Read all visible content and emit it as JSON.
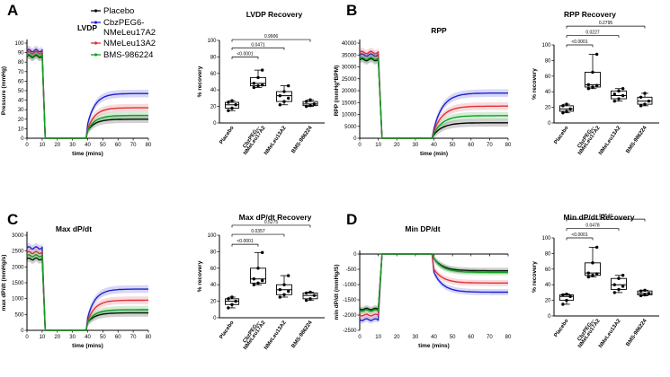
{
  "legend": [
    {
      "name": "Placebo",
      "color": "#000000"
    },
    {
      "name": "CbzPEG6-",
      "name2": "NMeLeu17A2",
      "color": "#2020d0"
    },
    {
      "name": "NMeLeu13A2",
      "color": "#e0303a"
    },
    {
      "name": "BMS-986224",
      "color": "#10a020"
    }
  ],
  "chart_data": [
    {
      "type": "line",
      "panel_label": "A",
      "title": "LVDP",
      "xlabel": "time (mins)",
      "ylabel": "Pressure (mmHg)",
      "xlim": [
        0,
        80
      ],
      "ylim": [
        0,
        100
      ],
      "xticks": [
        0,
        10,
        20,
        30,
        40,
        50,
        60,
        70,
        80
      ],
      "yticks": [
        0,
        10,
        20,
        30,
        40,
        50,
        60,
        70,
        80,
        90,
        100
      ],
      "series": [
        {
          "name": "Placebo",
          "color": "#000000",
          "pre": 86,
          "post_start": 8,
          "post_end": 20
        },
        {
          "name": "CbzPEG6-NMeLeu17A2",
          "color": "#2020d0",
          "pre": 92,
          "post_start": 15,
          "post_end": 47
        },
        {
          "name": "NMeLeu13A2",
          "color": "#e0303a",
          "pre": 90,
          "post_start": 10,
          "post_end": 32
        },
        {
          "name": "BMS-986224",
          "color": "#10a020",
          "pre": 87,
          "post_start": 8,
          "post_end": 24
        }
      ]
    },
    {
      "type": "box",
      "panel_label": "",
      "title": "LVDP Recovery",
      "ylabel": "% recovery",
      "ylim": [
        0,
        100
      ],
      "yticks": [
        0,
        20,
        40,
        60,
        80,
        100
      ],
      "categories": [
        "Placebo",
        "CbzPEG6-NMeLeu17A2",
        "NMeLeu13A2",
        "BMS-986224"
      ],
      "tick_labels": [
        "Placebo",
        "CbzPEG₆-",
        "NMeLeu13A2",
        "BMS-986224"
      ],
      "tick_labels2": [
        "",
        "NMeLeu17A2",
        "",
        ""
      ],
      "boxes": [
        {
          "min": 15,
          "q1": 18,
          "median": 22,
          "q3": 25,
          "max": 27,
          "points": [
            15,
            18,
            22,
            25,
            27
          ]
        },
        {
          "min": 43,
          "q1": 45,
          "median": 48,
          "q3": 55,
          "max": 64,
          "points": [
            43,
            45,
            46,
            48,
            55,
            64
          ]
        },
        {
          "min": 22,
          "q1": 26,
          "median": 33,
          "q3": 38,
          "max": 45,
          "points": [
            22,
            26,
            30,
            33,
            38,
            45
          ]
        },
        {
          "min": 20,
          "q1": 21,
          "median": 23,
          "q3": 26,
          "max": 28,
          "points": [
            20,
            21,
            23,
            26,
            28
          ]
        }
      ],
      "comparisons": [
        {
          "from": 0,
          "to": 1,
          "p": "<0.0001",
          "y": 80
        },
        {
          "from": 0,
          "to": 2,
          "p": "0.0471",
          "y": 91
        },
        {
          "from": 0,
          "to": 3,
          "p": "0.9906",
          "y": 101
        }
      ]
    },
    {
      "type": "line",
      "panel_label": "B",
      "title": "RPP",
      "xlabel": "time (min)",
      "ylabel": "RPP (mmHg*BPM)",
      "xlim": [
        0,
        80
      ],
      "ylim": [
        0,
        40000
      ],
      "xticks": [
        0,
        10,
        20,
        30,
        40,
        50,
        60,
        70,
        80
      ],
      "yticks": [
        0,
        5000,
        10000,
        15000,
        20000,
        25000,
        30000,
        35000,
        40000
      ],
      "series": [
        {
          "name": "Placebo",
          "color": "#000000",
          "pre": 33000,
          "post_start": 1500,
          "post_end": 6500
        },
        {
          "name": "CbzPEG6-NMeLeu17A2",
          "color": "#2020d0",
          "pre": 35000,
          "post_start": 4000,
          "post_end": 19000
        },
        {
          "name": "NMeLeu13A2",
          "color": "#e0303a",
          "pre": 36000,
          "post_start": 3000,
          "post_end": 13500
        },
        {
          "name": "BMS-986224",
          "color": "#10a020",
          "pre": 33500,
          "post_start": 2000,
          "post_end": 9500
        }
      ]
    },
    {
      "type": "box",
      "panel_label": "",
      "title": "RPP Recovery",
      "ylabel": "% recovery",
      "ylim": [
        0,
        100
      ],
      "yticks": [
        0,
        20,
        40,
        60,
        80,
        100
      ],
      "categories": [
        "Placebo",
        "CbzPEG6-NMeLeu17A2",
        "NMeLeu13A2",
        "BMS-986224"
      ],
      "tick_labels": [
        "Placebo",
        "CbzPEG₆-",
        "NMeLeu13A2",
        "BMS-986224"
      ],
      "tick_labels2": [
        "",
        "NMeLeu17A2",
        "",
        ""
      ],
      "boxes": [
        {
          "min": 13,
          "q1": 15,
          "median": 18,
          "q3": 22,
          "max": 24,
          "points": [
            13,
            15,
            18,
            22,
            24
          ]
        },
        {
          "min": 44,
          "q1": 46,
          "median": 49,
          "q3": 65,
          "max": 88,
          "points": [
            44,
            46,
            48,
            49,
            65,
            88
          ]
        },
        {
          "min": 28,
          "q1": 31,
          "median": 35,
          "q3": 41,
          "max": 44,
          "points": [
            28,
            31,
            35,
            37,
            41,
            44
          ]
        },
        {
          "min": 22,
          "q1": 24,
          "median": 28,
          "q3": 33,
          "max": 38,
          "points": [
            22,
            24,
            28,
            33,
            38
          ]
        }
      ],
      "comparisons": [
        {
          "from": 0,
          "to": 1,
          "p": "<0.0001",
          "y": 100
        },
        {
          "from": 0,
          "to": 2,
          "p": "0.0227",
          "y": 112
        },
        {
          "from": 0,
          "to": 3,
          "p": "0.2795",
          "y": 124
        }
      ]
    },
    {
      "type": "line",
      "panel_label": "C",
      "title": "Max dP/dt",
      "xlabel": "time (mins)",
      "ylabel": "max dP/dt (mmHg/s)",
      "xlim": [
        0,
        80
      ],
      "ylim": [
        0,
        3000
      ],
      "xticks": [
        0,
        10,
        20,
        30,
        40,
        50,
        60,
        70,
        80
      ],
      "yticks": [
        0,
        500,
        1000,
        1500,
        2000,
        2500,
        3000
      ],
      "series": [
        {
          "name": "Placebo",
          "color": "#000000",
          "pre": 2250,
          "post_start": 250,
          "post_end": 550
        },
        {
          "name": "CbzPEG6-NMeLeu17A2",
          "color": "#2020d0",
          "pre": 2600,
          "post_start": 400,
          "post_end": 1300
        },
        {
          "name": "NMeLeu13A2",
          "color": "#e0303a",
          "pre": 2450,
          "post_start": 300,
          "post_end": 950
        },
        {
          "name": "BMS-986224",
          "color": "#10a020",
          "pre": 2350,
          "post_start": 250,
          "post_end": 650
        }
      ]
    },
    {
      "type": "box",
      "panel_label": "",
      "title": "Max dP/dt Recovery",
      "ylabel": "% recovery",
      "ylim": [
        0,
        100
      ],
      "yticks": [
        0,
        20,
        40,
        60,
        80,
        100
      ],
      "categories": [
        "Placebo",
        "CbzPEG6-NMeLeu17A2",
        "NMeLeu13A2",
        "BMS-986224"
      ],
      "tick_labels": [
        "Placebo",
        "CbzPEG₆-",
        "NMeLeu13A2",
        "BMS-986224"
      ],
      "tick_labels2": [
        "",
        "NMeLeu17A2",
        "",
        ""
      ],
      "boxes": [
        {
          "min": 12,
          "q1": 16,
          "median": 20,
          "q3": 23,
          "max": 25,
          "points": [
            12,
            16,
            20,
            23,
            25
          ]
        },
        {
          "min": 40,
          "q1": 42,
          "median": 47,
          "q3": 60,
          "max": 79,
          "points": [
            40,
            42,
            45,
            47,
            60,
            79
          ]
        },
        {
          "min": 25,
          "q1": 28,
          "median": 34,
          "q3": 40,
          "max": 51,
          "points": [
            25,
            28,
            32,
            34,
            40,
            51
          ]
        },
        {
          "min": 21,
          "q1": 23,
          "median": 27,
          "q3": 30,
          "max": 31,
          "points": [
            21,
            23,
            27,
            30,
            31
          ]
        }
      ],
      "comparisons": [
        {
          "from": 0,
          "to": 1,
          "p": "<0.0001",
          "y": 89
        },
        {
          "from": 0,
          "to": 2,
          "p": "0.0357",
          "y": 101
        },
        {
          "from": 0,
          "to": 3,
          "p": "0.5275",
          "y": 112
        }
      ]
    },
    {
      "type": "line",
      "panel_label": "D",
      "title": "Min DP/dt",
      "xlabel": "time (mins)",
      "ylabel": "min dP/dt (mmHg/S)",
      "xlim": [
        0,
        80
      ],
      "ylim": [
        -2500,
        0
      ],
      "xticks": [
        0,
        10,
        20,
        30,
        40,
        50,
        60,
        70,
        80
      ],
      "yticks": [
        0,
        -500,
        -1000,
        -1500,
        -2000,
        -2500
      ],
      "series": [
        {
          "name": "Placebo",
          "color": "#000000",
          "pre": -1800,
          "post_start": -150,
          "post_end": -550
        },
        {
          "name": "CbzPEG6-NMeLeu17A2",
          "color": "#2020d0",
          "pre": -2150,
          "post_start": -600,
          "post_end": -1250
        },
        {
          "name": "NMeLeu13A2",
          "color": "#e0303a",
          "pre": -2000,
          "post_start": -500,
          "post_end": -950
        },
        {
          "name": "BMS-986224",
          "color": "#10a020",
          "pre": -1850,
          "post_start": -150,
          "post_end": -600
        }
      ]
    },
    {
      "type": "box",
      "panel_label": "",
      "title": "Min dP/dt Recovery",
      "ylabel": "% recovery",
      "ylim": [
        0,
        100
      ],
      "yticks": [
        0,
        20,
        40,
        60,
        80,
        100
      ],
      "categories": [
        "Placebo",
        "CbzPEG6-NMeLeu17A2",
        "NMeLeu13A2",
        "BMS-986224"
      ],
      "tick_labels": [
        "Placebo",
        "CbzPEG₆-",
        "NMeLeu13A2",
        "BMS-986224"
      ],
      "tick_labels2": [
        "",
        "NMeLeu17A2",
        "",
        ""
      ],
      "boxes": [
        {
          "min": 15,
          "q1": 20,
          "median": 25,
          "q3": 27,
          "max": 28,
          "points": [
            15,
            20,
            25,
            27,
            28
          ]
        },
        {
          "min": 50,
          "q1": 52,
          "median": 55,
          "q3": 68,
          "max": 88,
          "points": [
            50,
            52,
            54,
            55,
            68,
            88
          ]
        },
        {
          "min": 30,
          "q1": 34,
          "median": 40,
          "q3": 48,
          "max": 52,
          "points": [
            30,
            34,
            38,
            40,
            48,
            52
          ]
        },
        {
          "min": 26,
          "q1": 27,
          "median": 29,
          "q3": 32,
          "max": 33,
          "points": [
            26,
            27,
            29,
            32,
            33
          ]
        }
      ],
      "comparisons": [
        {
          "from": 0,
          "to": 1,
          "p": "<0.0001",
          "y": 100
        },
        {
          "from": 0,
          "to": 2,
          "p": "0.0478",
          "y": 112
        },
        {
          "from": 0,
          "to": 3,
          "p": "0.9540",
          "y": 124
        }
      ]
    }
  ]
}
